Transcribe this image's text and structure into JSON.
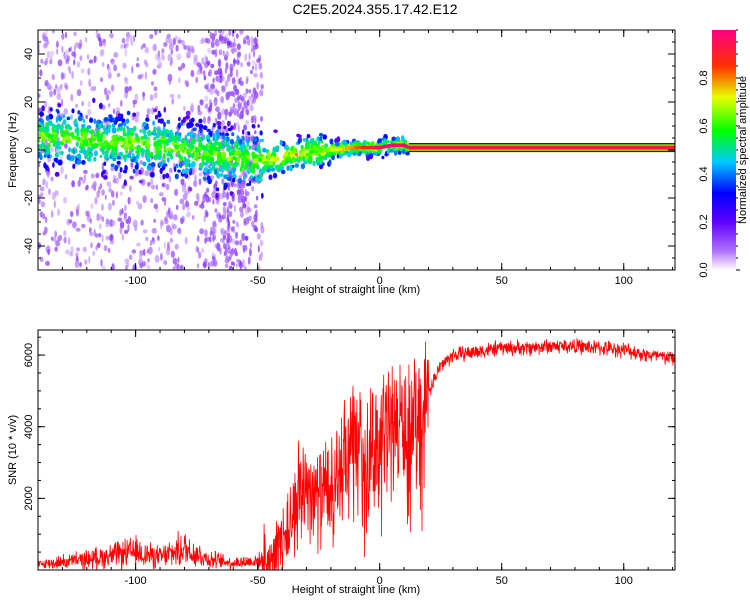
{
  "title": "C2E5.2024.355.17.42.E12",
  "chart_data": [
    {
      "type": "heatmap",
      "xlabel": "Height of straight line (km)",
      "ylabel": "Frequency (Hz)",
      "xlim": [
        -140,
        121
      ],
      "ylim": [
        -50,
        50
      ],
      "xticks": [
        -100,
        -50,
        0,
        50,
        100
      ],
      "yticks": [
        -40,
        -20,
        0,
        20,
        40
      ],
      "colorbar": {
        "label": "Normalized spectral amplitude",
        "range": [
          0,
          1
        ],
        "ticks": [
          0.0,
          0.2,
          0.4,
          0.6,
          0.8
        ],
        "colors": [
          "#ffffff",
          "#8000ff",
          "#0000ff",
          "#00ffff",
          "#00ff00",
          "#ffff00",
          "#ff0000",
          "#ff0080"
        ]
      },
      "ridge": {
        "x": [
          -140,
          -120,
          -100,
          -90,
          -80,
          -70,
          -60,
          -50,
          -40,
          -30,
          -20,
          -10,
          0,
          5,
          10,
          12,
          121
        ],
        "y": [
          6,
          4,
          3,
          2,
          0,
          -2,
          -3,
          -5,
          -3,
          -1,
          0,
          1,
          1,
          2,
          2,
          1,
          1
        ]
      },
      "noise_region": {
        "x_from": -140,
        "x_to": -48
      },
      "steady_band": {
        "x_from": 12,
        "x_to": 121,
        "frequency": 1
      }
    },
    {
      "type": "line",
      "xlabel": "Height of straight line (km)",
      "ylabel": "SNR (10 * v/v)",
      "xlim": [
        -140,
        121
      ],
      "ylim": [
        0,
        6700
      ],
      "xticks": [
        -100,
        -50,
        0,
        50,
        100
      ],
      "yticks": [
        2000,
        4000,
        6000
      ],
      "series": [
        {
          "color": "#ff0000",
          "x": [
            -140,
            -120,
            -100,
            -90,
            -80,
            -70,
            -60,
            -50,
            -45,
            -40,
            -35,
            -30,
            -25,
            -20,
            -15,
            -10,
            -5,
            0,
            5,
            10,
            15,
            20,
            25,
            30,
            40,
            50,
            60,
            70,
            80,
            90,
            100,
            110,
            121
          ],
          "y": [
            150,
            300,
            500,
            350,
            600,
            300,
            200,
            250,
            300,
            800,
            1800,
            2500,
            2000,
            2300,
            3000,
            3500,
            3200,
            3700,
            4100,
            4000,
            4400,
            5000,
            5700,
            6000,
            6100,
            6200,
            6200,
            6250,
            6250,
            6200,
            6150,
            6000,
            5900
          ]
        }
      ]
    }
  ]
}
